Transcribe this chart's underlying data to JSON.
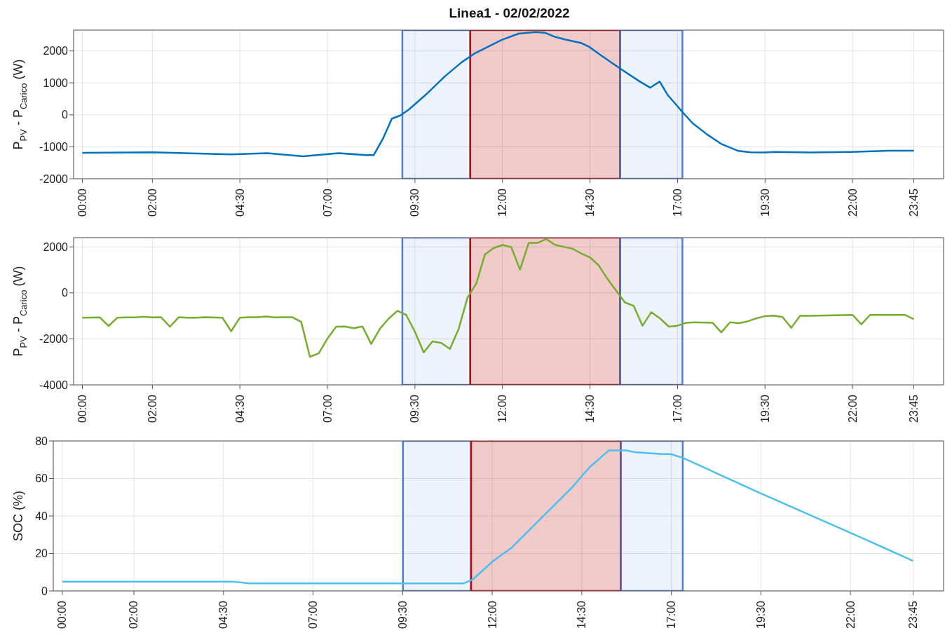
{
  "chart_data": [
    {
      "type": "line",
      "title": "Linea1 - 02/02/2022",
      "ylabel": "P$_{PV}$ - P$_{Carico}$ (W)",
      "series": [
        {
          "color": "#0072bd",
          "x": [
            0,
            2.0,
            4.24,
            5.28,
            6.3,
            7.32,
            8.12,
            8.32,
            8.58,
            8.84,
            9.08,
            9.32,
            9.8,
            10.36,
            10.84,
            11.22,
            11.97,
            12.46,
            12.96,
            13.21,
            13.5,
            13.78,
            14.24,
            14.49,
            14.78,
            15.36,
            15.94,
            16.22,
            16.49,
            16.72,
            17.14,
            17.42,
            17.84,
            18.25,
            18.74,
            19.08,
            19.49,
            19.78,
            20.81,
            21.97,
            23.04,
            23.75
          ],
          "values": [
            -1190,
            -1170,
            -1240,
            -1200,
            -1300,
            -1200,
            -1260,
            -1260,
            -760,
            -120,
            -20,
            160,
            620,
            1210,
            1650,
            1930,
            2340,
            2540,
            2590,
            2570,
            2440,
            2360,
            2250,
            2120,
            1890,
            1450,
            1030,
            850,
            1040,
            620,
            90,
            -250,
            -610,
            -910,
            -1130,
            -1170,
            -1180,
            -1160,
            -1180,
            -1160,
            -1120,
            -1120
          ]
        }
      ],
      "xlim": [
        -0.25,
        24.6
      ],
      "xticks": [
        {
          "value": 0,
          "label": "00:00"
        },
        {
          "value": 2,
          "label": "02:00"
        },
        {
          "value": 4.5,
          "label": "04:30"
        },
        {
          "value": 7,
          "label": "07:00"
        },
        {
          "value": 9.5,
          "label": "09:30"
        },
        {
          "value": 12,
          "label": "12:00"
        },
        {
          "value": 14.5,
          "label": "14:30"
        },
        {
          "value": 17,
          "label": "17:00"
        },
        {
          "value": 19.5,
          "label": "19:30"
        },
        {
          "value": 22,
          "label": "22:00"
        },
        {
          "value": 23.75,
          "label": "23:45"
        }
      ],
      "ylim": [
        -2000,
        2650
      ],
      "yticks": [
        -2000,
        -1000,
        0,
        1000,
        2000
      ],
      "grid": true,
      "bands": [
        {
          "axis": "x",
          "from": 9.14,
          "to": 11.08,
          "color": "#4472c4"
        },
        {
          "axis": "x",
          "from": 11.08,
          "to": 15.36,
          "color": "#c00000"
        },
        {
          "axis": "x",
          "from": 15.36,
          "to": 17.14,
          "color": "#4472c4"
        }
      ]
    },
    {
      "type": "line",
      "ylabel": "P$_{PV}$ - P$_{Carico}$ (W)",
      "series": [
        {
          "color": "#77ac30",
          "x": [
            0,
            0.5,
            0.75,
            1.0,
            1.25,
            1.5,
            1.75,
            2.0,
            2.25,
            2.5,
            2.75,
            3.0,
            3.25,
            3.5,
            4.0,
            4.25,
            4.5,
            4.75,
            5.0,
            5.25,
            5.5,
            5.75,
            6.0,
            6.25,
            6.5,
            6.75,
            7.0,
            7.25,
            7.5,
            7.75,
            8.0,
            8.25,
            8.5,
            8.75,
            9.0,
            9.25,
            9.5,
            9.75,
            10.0,
            10.25,
            10.5,
            10.75,
            11.0,
            11.25,
            11.5,
            11.75,
            12.0,
            12.25,
            12.5,
            12.75,
            13.0,
            13.25,
            13.5,
            13.75,
            14.0,
            14.25,
            14.5,
            14.75,
            15.0,
            15.25,
            15.5,
            15.75,
            16.0,
            16.25,
            16.5,
            16.75,
            17.0,
            17.25,
            17.5,
            18.0,
            18.25,
            18.5,
            18.75,
            19.0,
            19.25,
            19.5,
            19.75,
            20.0,
            20.25,
            20.5,
            20.75,
            21.25,
            22.0,
            22.25,
            22.5,
            23.5,
            23.75
          ],
          "values": [
            -1080,
            -1070,
            -1440,
            -1080,
            -1070,
            -1070,
            -1040,
            -1070,
            -1060,
            -1470,
            -1060,
            -1080,
            -1080,
            -1060,
            -1080,
            -1670,
            -1080,
            -1060,
            -1060,
            -1030,
            -1070,
            -1060,
            -1060,
            -1260,
            -2780,
            -2630,
            -1990,
            -1470,
            -1460,
            -1540,
            -1460,
            -2220,
            -1560,
            -1120,
            -780,
            -960,
            -1690,
            -2590,
            -2110,
            -2180,
            -2440,
            -1560,
            -210,
            400,
            1670,
            1950,
            2080,
            1990,
            1010,
            2170,
            2170,
            2340,
            2090,
            2000,
            1920,
            1710,
            1540,
            1190,
            600,
            90,
            -420,
            -570,
            -1430,
            -840,
            -1110,
            -1470,
            -1430,
            -1300,
            -1280,
            -1300,
            -1720,
            -1280,
            -1320,
            -1240,
            -1110,
            -1010,
            -990,
            -1050,
            -1520,
            -1000,
            -1000,
            -980,
            -960,
            -1370,
            -960,
            -960,
            -1150
          ]
        }
      ],
      "xlim": [
        -0.25,
        24.6
      ],
      "xticks": [
        {
          "value": 0,
          "label": "00:00"
        },
        {
          "value": 2,
          "label": "02:00"
        },
        {
          "value": 4.5,
          "label": "04:30"
        },
        {
          "value": 7,
          "label": "07:00"
        },
        {
          "value": 9.5,
          "label": "09:30"
        },
        {
          "value": 12,
          "label": "12:00"
        },
        {
          "value": 14.5,
          "label": "14:30"
        },
        {
          "value": 17,
          "label": "17:00"
        },
        {
          "value": 19.5,
          "label": "19:30"
        },
        {
          "value": 22,
          "label": "22:00"
        },
        {
          "value": 23.75,
          "label": "23:45"
        }
      ],
      "ylim": [
        -4000,
        2400
      ],
      "yticks": [
        -4000,
        -2000,
        0,
        2000
      ],
      "grid": true,
      "bands": [
        {
          "axis": "x",
          "from": 9.14,
          "to": 11.08,
          "color": "#4472c4"
        },
        {
          "axis": "x",
          "from": 11.08,
          "to": 15.36,
          "color": "#c00000"
        },
        {
          "axis": "x",
          "from": 15.36,
          "to": 17.14,
          "color": "#4472c4"
        }
      ]
    },
    {
      "type": "line",
      "ylabel": "SOC (%)",
      "series": [
        {
          "color": "#4dbeee",
          "x": [
            0,
            4.73,
            5.24,
            11.2,
            11.45,
            12.03,
            12.54,
            13.38,
            14.22,
            14.72,
            15.26,
            15.73,
            15.98,
            16.73,
            16.98,
            17.32,
            19.5,
            22.0,
            23.75
          ],
          "values": [
            5,
            5,
            4,
            4,
            6,
            16,
            23,
            39,
            55,
            66,
            75,
            75,
            74,
            73,
            73,
            71,
            52,
            31,
            16
          ]
        }
      ],
      "xlim": [
        -0.25,
        24.6
      ],
      "xticks": [
        {
          "value": 0,
          "label": "00:00"
        },
        {
          "value": 2,
          "label": "02:00"
        },
        {
          "value": 4.5,
          "label": "04:30"
        },
        {
          "value": 7,
          "label": "07:00"
        },
        {
          "value": 9.5,
          "label": "09:30"
        },
        {
          "value": 12,
          "label": "12:00"
        },
        {
          "value": 14.5,
          "label": "14:30"
        },
        {
          "value": 17,
          "label": "17:00"
        },
        {
          "value": 19.5,
          "label": "19:30"
        },
        {
          "value": 22,
          "label": "22:00"
        },
        {
          "value": 23.75,
          "label": "23:45"
        }
      ],
      "ylim": [
        0,
        80
      ],
      "yticks": [
        0,
        20,
        40,
        60,
        80
      ],
      "grid": true,
      "bands": [
        {
          "axis": "x",
          "from": 9.51,
          "to": 11.41,
          "color": "#4472c4"
        },
        {
          "axis": "x",
          "from": 11.41,
          "to": 15.59,
          "color": "#c00000"
        },
        {
          "axis": "x",
          "from": 15.59,
          "to": 17.32,
          "color": "#4472c4"
        }
      ]
    }
  ]
}
